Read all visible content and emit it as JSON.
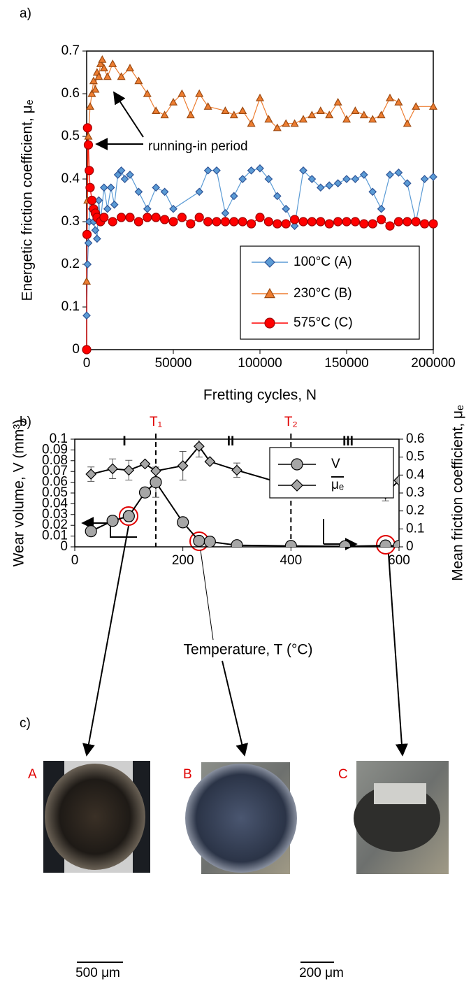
{
  "panel_labels": [
    "a)",
    "b)",
    "c)"
  ],
  "chart_data": [
    {
      "type": "line",
      "xlabel": "Fretting cycles, N",
      "ylabel": "Energetic friction coefficient, μₑ",
      "annotation": "running-in period",
      "xlim": [
        0,
        200000
      ],
      "xticks": [
        0,
        50000,
        100000,
        150000,
        200000
      ],
      "ylim": [
        0,
        0.7
      ],
      "yticks": [
        0,
        0.1,
        0.2,
        0.3,
        0.4,
        0.5,
        0.6,
        0.7
      ],
      "legend": "lower right",
      "series": [
        {
          "name": "100°C (A)",
          "color": "#5b9bd5",
          "edge_color": "#2f5597",
          "marker": "diamond",
          "x": [
            0,
            500,
            1000,
            1500,
            2000,
            3000,
            4000,
            5000,
            6000,
            7000,
            8000,
            10000,
            12000,
            14000,
            16000,
            18000,
            20000,
            22000,
            25000,
            30000,
            35000,
            40000,
            45000,
            50000,
            65000,
            70000,
            75000,
            80000,
            85000,
            90000,
            95000,
            100000,
            105000,
            110000,
            115000,
            120000,
            125000,
            130000,
            135000,
            140000,
            145000,
            150000,
            155000,
            160000,
            165000,
            170000,
            175000,
            180000,
            185000,
            190000,
            195000,
            200000
          ],
          "values": [
            0.08,
            0.2,
            0.25,
            0.3,
            0.35,
            0.33,
            0.3,
            0.28,
            0.26,
            0.35,
            0.3,
            0.38,
            0.33,
            0.38,
            0.34,
            0.41,
            0.42,
            0.4,
            0.41,
            0.37,
            0.33,
            0.38,
            0.37,
            0.33,
            0.37,
            0.42,
            0.42,
            0.32,
            0.36,
            0.4,
            0.42,
            0.425,
            0.4,
            0.36,
            0.33,
            0.29,
            0.42,
            0.4,
            0.38,
            0.385,
            0.39,
            0.4,
            0.4,
            0.41,
            0.37,
            0.33,
            0.41,
            0.415,
            0.39,
            0.3,
            0.4,
            0.405
          ]
        },
        {
          "name": "230°C (B)",
          "color": "#ed7d31",
          "edge_color": "#9c4a12",
          "marker": "triangle",
          "x": [
            0,
            500,
            1000,
            2000,
            3000,
            4000,
            5000,
            6000,
            7000,
            8000,
            9000,
            10000,
            12000,
            15000,
            20000,
            25000,
            30000,
            35000,
            40000,
            45000,
            50000,
            55000,
            60000,
            65000,
            70000,
            80000,
            85000,
            90000,
            95000,
            100000,
            105000,
            110000,
            115000,
            120000,
            125000,
            130000,
            135000,
            140000,
            145000,
            150000,
            155000,
            160000,
            165000,
            170000,
            175000,
            180000,
            185000,
            190000,
            200000
          ],
          "values": [
            0.16,
            0.35,
            0.5,
            0.57,
            0.6,
            0.63,
            0.61,
            0.65,
            0.64,
            0.67,
            0.68,
            0.66,
            0.64,
            0.67,
            0.64,
            0.66,
            0.63,
            0.6,
            0.56,
            0.55,
            0.58,
            0.6,
            0.55,
            0.6,
            0.57,
            0.56,
            0.55,
            0.56,
            0.53,
            0.59,
            0.54,
            0.52,
            0.53,
            0.53,
            0.54,
            0.55,
            0.56,
            0.55,
            0.58,
            0.54,
            0.56,
            0.55,
            0.54,
            0.55,
            0.59,
            0.58,
            0.53,
            0.57,
            0.57
          ]
        },
        {
          "name": "575°C (C)",
          "color": "#ff0000",
          "edge_color": "#a00000",
          "marker": "circle",
          "x": [
            0,
            200,
            500,
            1000,
            1500,
            2000,
            3000,
            4000,
            5000,
            6000,
            8000,
            10000,
            15000,
            20000,
            25000,
            30000,
            35000,
            40000,
            45000,
            50000,
            55000,
            60000,
            65000,
            70000,
            75000,
            80000,
            85000,
            90000,
            95000,
            100000,
            105000,
            110000,
            115000,
            120000,
            125000,
            130000,
            135000,
            140000,
            145000,
            150000,
            155000,
            160000,
            165000,
            170000,
            175000,
            180000,
            185000,
            190000,
            195000,
            200000
          ],
          "values": [
            0,
            0.27,
            0.52,
            0.48,
            0.42,
            0.38,
            0.35,
            0.33,
            0.32,
            0.31,
            0.3,
            0.31,
            0.3,
            0.31,
            0.31,
            0.3,
            0.31,
            0.31,
            0.305,
            0.3,
            0.31,
            0.295,
            0.31,
            0.3,
            0.3,
            0.3,
            0.3,
            0.3,
            0.295,
            0.31,
            0.3,
            0.295,
            0.295,
            0.305,
            0.3,
            0.3,
            0.3,
            0.295,
            0.3,
            0.3,
            0.3,
            0.295,
            0.295,
            0.305,
            0.29,
            0.3,
            0.3,
            0.3,
            0.295,
            0.295
          ]
        }
      ]
    },
    {
      "type": "line",
      "xlabel": "Temperature, T (°C)",
      "ylabel": "Wear volume, V (mm³)",
      "y2label": "Mean friction coefficient, μₑ",
      "xlim": [
        0,
        600
      ],
      "xticks": [
        0,
        200,
        400,
        600
      ],
      "ylim": [
        0,
        0.1
      ],
      "yticks": [
        0,
        0.01,
        0.02,
        0.03,
        0.04,
        0.05,
        0.06,
        0.07,
        0.08,
        0.09,
        0.1
      ],
      "y2lim": [
        0,
        0.6
      ],
      "y2ticks": [
        0,
        0.1,
        0.2,
        0.3,
        0.4,
        0.5,
        0.6
      ],
      "legend": "upper right",
      "region_labels": [
        "I",
        "II",
        "III"
      ],
      "reference_lines": [
        {
          "value": 150,
          "label": "T₁"
        },
        {
          "value": 400,
          "label": "T₂"
        }
      ],
      "x": [
        30,
        70,
        100,
        130,
        150,
        200,
        230,
        250,
        300,
        400,
        500,
        575,
        600
      ],
      "series": [
        {
          "name": "V",
          "color": "#000000",
          "fill": "#a6a6a6",
          "marker": "circle",
          "values": [
            0.0145,
            0.0242,
            0.0285,
            0.0505,
            0.06,
            0.0228,
            0.0055,
            0.0048,
            0.0015,
            0.0008,
            0.0005,
            0.0012,
            0.0008
          ],
          "errors": [
            0.0045,
            null,
            0.005,
            null,
            0.014,
            null,
            null,
            null,
            null,
            null,
            null,
            0.004,
            null
          ]
        },
        {
          "name": "μₑ",
          "color": "#000000",
          "fill": "#a6a6a6",
          "marker": "diamond",
          "axis": "y2",
          "values": [
            0.405,
            0.435,
            0.427,
            0.462,
            0.423,
            0.452,
            0.56,
            0.475,
            0.427,
            0.339,
            0.371,
            0.296,
            0.37
          ],
          "errors": [
            0.04,
            0.055,
            0.055,
            null,
            null,
            0.08,
            0.06,
            null,
            0.04,
            null,
            null,
            0.04,
            null
          ]
        }
      ]
    }
  ],
  "micrographs": [
    {
      "label": "A"
    },
    {
      "label": "B"
    },
    {
      "label": "C"
    }
  ],
  "scale_bars": [
    "500 μm",
    "200 μm"
  ]
}
